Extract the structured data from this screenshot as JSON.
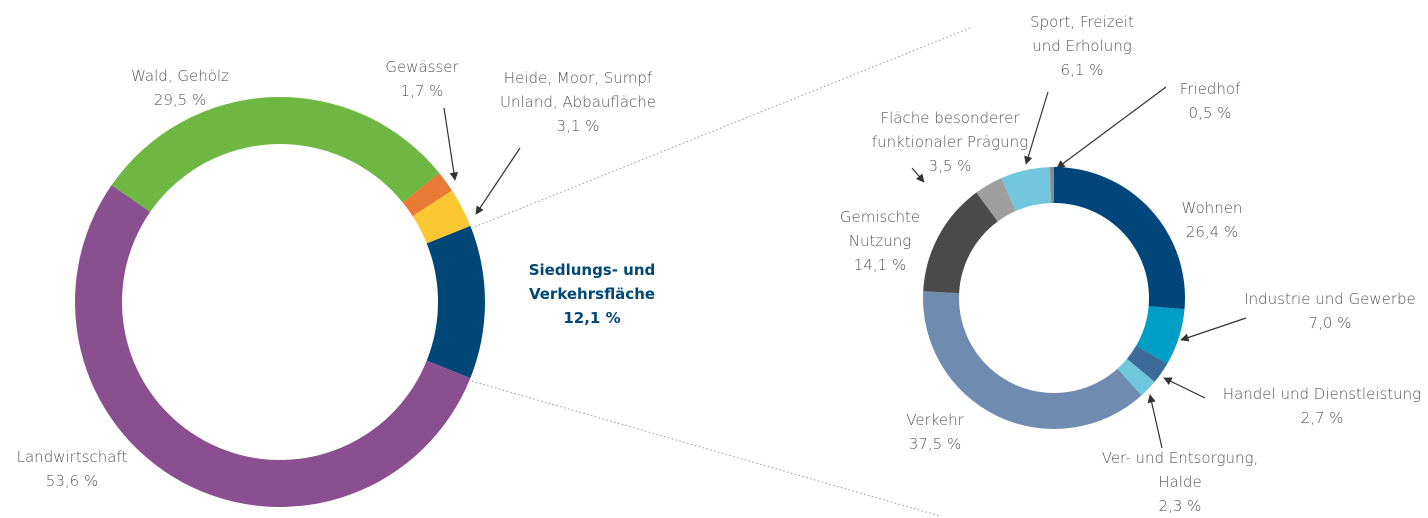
{
  "chart_data": [
    {
      "type": "pie",
      "categories": [
        "Siedlungs- und\nVerkehrsfläche",
        "Heide, Moor, Sumpf\nUnland, Abbaufläche",
        "Gewässer",
        "Wald, Gehölz",
        "Landwirtschaft"
      ],
      "values": [
        12.1,
        3.1,
        1.7,
        29.5,
        53.6
      ],
      "value_labels": [
        "12,1 %",
        "3,1 %",
        "1,7 %",
        "29,5 %",
        "53,6 %"
      ],
      "colors": [
        "#004677",
        "#fbc834",
        "#e97b36",
        "#6db742",
        "#8a4f8e"
      ]
    },
    {
      "type": "pie",
      "categories": [
        "Wohnen",
        "Industrie und Gewerbe",
        "Handel und Dienstleistung",
        "Ver- und Entsorgung,\nHalde",
        "Verkehr",
        "Gemischte\nNutzung",
        "Fläche besonderer\nfunktionaler Prägung",
        "Sport, Freizeit\nund Erholung",
        "Friedhof"
      ],
      "values": [
        26.4,
        7.0,
        2.7,
        2.3,
        37.5,
        14.1,
        3.5,
        6.1,
        0.5
      ],
      "value_labels": [
        "26,4 %",
        "7,0 %",
        "2,7 %",
        "2,3 %",
        "37,5 %",
        "14,1 %",
        "3,5 %",
        "6,1 %",
        "0,5 %"
      ],
      "colors": [
        "#00467a",
        "#009fc8",
        "#3d6b99",
        "#6fc7dd",
        "#6f8bb0",
        "#4a4a4a",
        "#9e9e9e",
        "#72c6de",
        "#8a8a8a"
      ]
    }
  ]
}
